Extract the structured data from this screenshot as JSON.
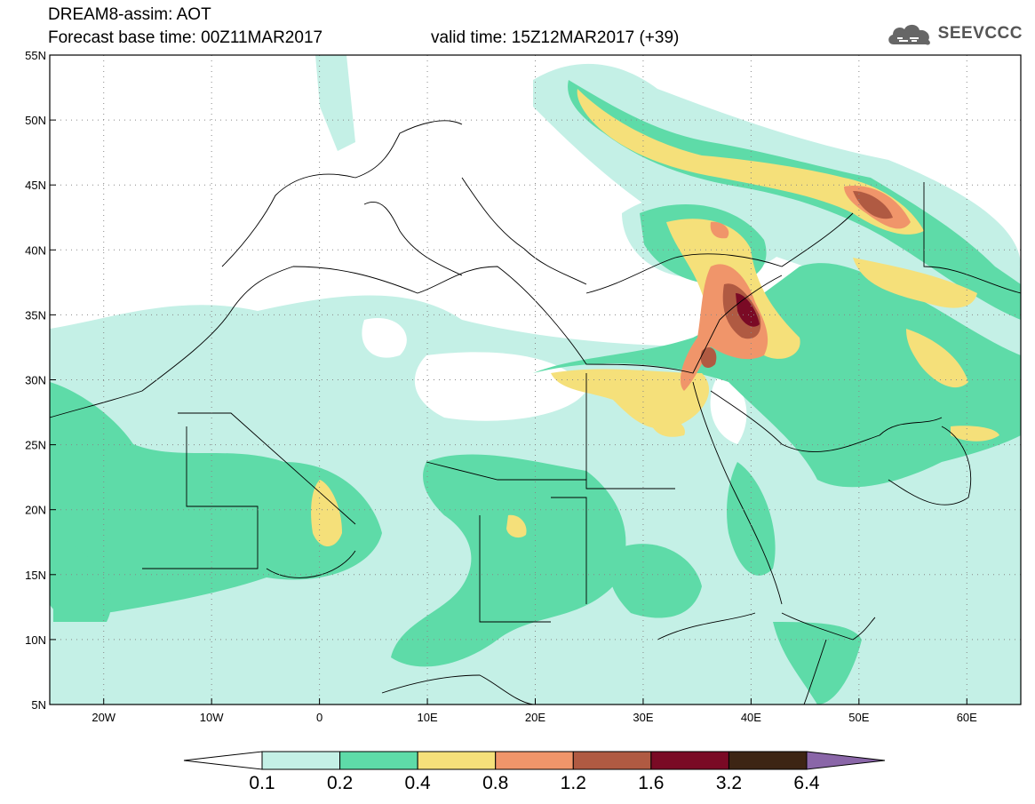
{
  "header": {
    "title": "DREAM8-assim: AOT",
    "base_time": "Forecast base time: 00Z11MAR2017",
    "valid_time": "valid time: 15Z12MAR2017 (+39)",
    "logo_text": "SEEVCCC",
    "logo_icon": "cloud-icon"
  },
  "map": {
    "lon_range": [
      -25,
      65
    ],
    "lat_range": [
      5,
      55
    ],
    "lat_labels": [
      "55N",
      "50N",
      "45N",
      "40N",
      "35N",
      "30N",
      "25N",
      "20N",
      "15N",
      "10N",
      "5N"
    ],
    "lat_values": [
      55,
      50,
      45,
      40,
      35,
      30,
      25,
      20,
      15,
      10,
      5
    ],
    "lon_labels": [
      "20W",
      "10W",
      "0",
      "10E",
      "20E",
      "30E",
      "40E",
      "50E",
      "60E"
    ],
    "lon_values": [
      -20,
      -10,
      0,
      10,
      20,
      30,
      40,
      50,
      60
    ]
  },
  "colorbar": {
    "levels": [
      "0.1",
      "0.2",
      "0.4",
      "0.8",
      "1.2",
      "1.6",
      "3.2",
      "6.4"
    ],
    "colors": [
      "#c4f0e6",
      "#5edba8",
      "#f5e07a",
      "#f0956a",
      "#b05a42",
      "#7a0a25",
      "#3d2514",
      "#8a66a8"
    ],
    "under_color": "#ffffff"
  }
}
